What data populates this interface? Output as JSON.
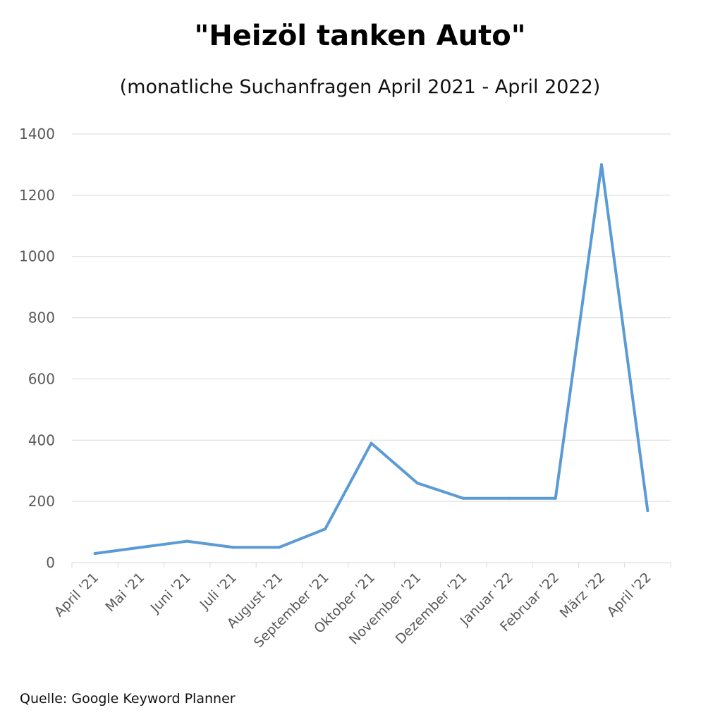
{
  "chart_data": {
    "type": "line",
    "title": "\"Heizöl tanken Auto\"",
    "subtitle": "(monatliche Suchanfragen April 2021 - April 2022)",
    "source": "Quelle: Google Keyword Planner",
    "categories": [
      "April '21",
      "Mai '21",
      "Juni '21",
      "Juli '21",
      "August '21",
      "September '21",
      "Oktober '21",
      "November '21",
      "Dezember '21",
      "Januar '22",
      "Februar '22",
      "März '22",
      "April '22"
    ],
    "series": [
      {
        "values": [
          30,
          50,
          70,
          50,
          50,
          110,
          390,
          260,
          210,
          210,
          210,
          1300,
          170
        ],
        "color": "#5b9bd5"
      }
    ],
    "ylim": [
      0,
      1400
    ],
    "yticks": [
      0,
      200,
      400,
      600,
      800,
      1000,
      1200,
      1400
    ],
    "xlabel": "",
    "ylabel": "",
    "grid": true,
    "legend": "none"
  }
}
